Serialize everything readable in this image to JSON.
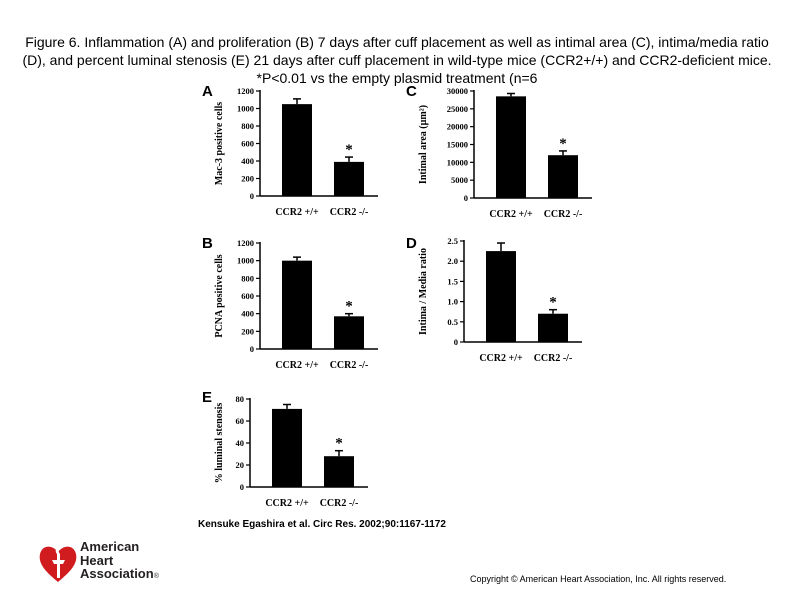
{
  "caption": "Figure 6. Inflammation (A) and proliferation (B) 7 days after cuff placement as well as intimal area (C), intima/media ratio (D), and percent luminal stenosis (E) 21 days after cuff placement in wild-type mice (CCR2+/+) and CCR2-deficient mice. *P<0.01 vs the empty plasmid treatment (n=6",
  "citation": "Kensuke Egashira et al. Circ Res. 2002;90:1167-1172",
  "copyright": "Copyright © American Heart Association, Inc. All rights reserved.",
  "logo": {
    "line1": "American",
    "line2": "Heart",
    "line3": "Association",
    "mark": "®"
  },
  "colors": {
    "bar": "#000000",
    "logo_red": "#d01c1f"
  },
  "chart_data": [
    {
      "panel": "A",
      "type": "bar",
      "ylabel": "Mac-3 positive cells",
      "categories": [
        "CCR2 +/+",
        "CCR2 -/-"
      ],
      "values": [
        1050,
        390
      ],
      "errors": [
        60,
        55
      ],
      "significance": [
        "",
        "*"
      ],
      "ylim": [
        0,
        1200
      ],
      "yticks": [
        0,
        200,
        400,
        600,
        800,
        1000,
        1200
      ],
      "ytick_labels": [
        "0",
        "200",
        "400",
        "600",
        "800",
        "1000",
        "1200"
      ]
    },
    {
      "panel": "C",
      "type": "bar",
      "ylabel": "Intimal area (µm²)",
      "categories": [
        "CCR2 +/+",
        "CCR2 -/-"
      ],
      "values": [
        28500,
        12000
      ],
      "errors": [
        800,
        1200
      ],
      "significance": [
        "",
        "*"
      ],
      "ylim": [
        0,
        30000
      ],
      "yticks": [
        0,
        5000,
        10000,
        15000,
        20000,
        25000,
        30000
      ],
      "ytick_labels": [
        "0",
        "5000",
        "10000",
        "15000",
        "20000",
        "25000",
        "30000"
      ]
    },
    {
      "panel": "B",
      "type": "bar",
      "ylabel": "PCNA positive cells",
      "categories": [
        "CCR2 +/+",
        "CCR2 -/-"
      ],
      "values": [
        1000,
        370
      ],
      "errors": [
        40,
        30
      ],
      "significance": [
        "",
        "*"
      ],
      "ylim": [
        0,
        1200
      ],
      "yticks": [
        0,
        200,
        400,
        600,
        800,
        1000,
        1200
      ],
      "ytick_labels": [
        "0",
        "200",
        "400",
        "600",
        "800",
        "1000",
        "1200"
      ]
    },
    {
      "panel": "D",
      "type": "bar",
      "ylabel": "Intima / Media ratio",
      "categories": [
        "CCR2 +/+",
        "CCR2 -/-"
      ],
      "values": [
        2.25,
        0.7
      ],
      "errors": [
        0.2,
        0.1
      ],
      "significance": [
        "",
        "*"
      ],
      "ylim": [
        0,
        2.5
      ],
      "yticks": [
        0,
        0.5,
        1,
        1.5,
        2,
        2.5
      ],
      "ytick_labels": [
        "0",
        "0.5",
        "1.0",
        "1.5",
        "2.0",
        "2.5"
      ]
    },
    {
      "panel": "E",
      "type": "bar",
      "ylabel": "% luminal stenosis",
      "categories": [
        "CCR2 +/+",
        "CCR2 -/-"
      ],
      "values": [
        71,
        28
      ],
      "errors": [
        4,
        5
      ],
      "significance": [
        "",
        "*"
      ],
      "ylim": [
        0,
        80
      ],
      "yticks": [
        0,
        20,
        40,
        60,
        80
      ],
      "ytick_labels": [
        "0",
        "20",
        "40",
        "60",
        "80"
      ]
    }
  ]
}
